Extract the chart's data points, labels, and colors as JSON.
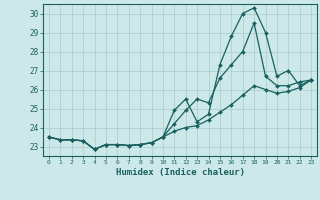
{
  "xlabel": "Humidex (Indice chaleur)",
  "background_color": "#cce8e8",
  "grid_color": "#b0d0d0",
  "line_color": "#1a6060",
  "xlim": [
    -0.5,
    23.5
  ],
  "ylim": [
    22.5,
    30.5
  ],
  "yticks": [
    23,
    24,
    25,
    26,
    27,
    28,
    29,
    30
  ],
  "xticks": [
    0,
    1,
    2,
    3,
    4,
    5,
    6,
    7,
    8,
    9,
    10,
    11,
    12,
    13,
    14,
    15,
    16,
    17,
    18,
    19,
    20,
    21,
    22,
    23
  ],
  "line1_y": [
    23.5,
    23.35,
    23.35,
    23.3,
    22.85,
    23.1,
    23.1,
    23.05,
    23.1,
    23.2,
    23.5,
    24.9,
    25.5,
    24.3,
    24.7,
    27.3,
    28.8,
    30.0,
    30.3,
    29.0,
    26.7,
    27.0,
    26.2,
    26.5
  ],
  "line2_y": [
    23.5,
    23.35,
    23.35,
    23.3,
    22.85,
    23.1,
    23.1,
    23.05,
    23.1,
    23.2,
    23.5,
    24.2,
    24.9,
    25.5,
    25.3,
    26.6,
    27.3,
    28.0,
    29.5,
    26.7,
    26.2,
    26.2,
    26.4,
    26.5
  ],
  "line3_y": [
    23.5,
    23.35,
    23.35,
    23.3,
    22.85,
    23.1,
    23.1,
    23.05,
    23.1,
    23.2,
    23.5,
    23.8,
    24.0,
    24.1,
    24.4,
    24.8,
    25.2,
    25.7,
    26.2,
    26.0,
    25.8,
    25.9,
    26.1,
    26.5
  ]
}
